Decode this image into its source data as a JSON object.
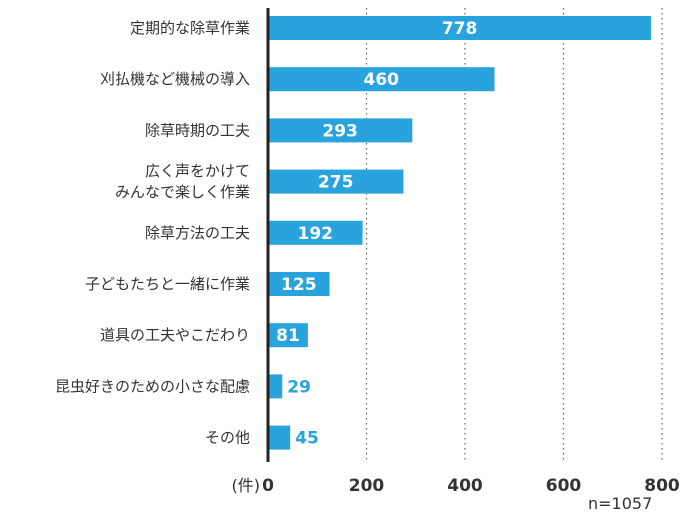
{
  "chart_data": {
    "type": "bar",
    "orientation": "horizontal",
    "categories": [
      [
        "定期的な除草作業"
      ],
      [
        "刈払機など機械の導入"
      ],
      [
        "除草時期の工夫"
      ],
      [
        "広く声をかけて",
        "みんなで楽しく作業"
      ],
      [
        "除草方法の工夫"
      ],
      [
        "子どもたちと一緒に作業"
      ],
      [
        "道具の工夫やこだわり"
      ],
      [
        "昆虫好きのための小さな配慮"
      ],
      [
        "その他"
      ]
    ],
    "values": [
      778,
      460,
      293,
      275,
      192,
      125,
      81,
      29,
      45
    ],
    "value_labels": [
      "778",
      "460",
      "293",
      "275",
      "192",
      "125",
      "81",
      "29",
      "45"
    ],
    "xlim": [
      0,
      800
    ],
    "xticks": [
      0,
      200,
      400,
      600,
      800
    ],
    "xtick_labels": [
      "0",
      "200",
      "400",
      "600",
      "800"
    ],
    "xlabel": "(件)",
    "grid": "vertical dotted",
    "bar_color": "#29a3dd",
    "label_color_inside": "#ffffff",
    "label_color_outside": "#29a3dd"
  },
  "note": "n=1057"
}
